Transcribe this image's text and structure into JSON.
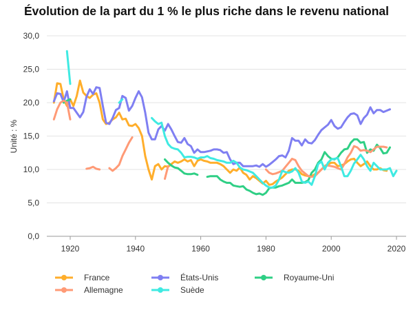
{
  "chart_data": {
    "type": "line",
    "title": "Évolution de la part du 1 % le plus riche dans le revenu national",
    "xlabel": "",
    "ylabel": "Unité : %",
    "xlim": [
      1913,
      2023
    ],
    "ylim": [
      0,
      30
    ],
    "x_ticks": [
      1920,
      1940,
      1960,
      1980,
      2000,
      2020
    ],
    "y_ticks": [
      "0,0",
      "5,0",
      "10,0",
      "15,0",
      "20,0",
      "25,0",
      "30,0"
    ],
    "grid": true,
    "legend_position": "bottom",
    "series": [
      {
        "name": "France",
        "color": "#FFAE2B",
        "start": 1915,
        "values": [
          20.0,
          22.9,
          22.8,
          20.5,
          19.5,
          20.5,
          19.5,
          21.0,
          23.3,
          21.5,
          21.0,
          20.7,
          21.2,
          21.4,
          20.0,
          17.5,
          16.8,
          17.0,
          17.5,
          17.8,
          18.5,
          17.5,
          17.6,
          16.6,
          16.5,
          16.8,
          16.2,
          15.0,
          12.0,
          10.0,
          8.5,
          10.5,
          10.8,
          10.0,
          10.5,
          10.4,
          10.8,
          11.2,
          11.0,
          11.2,
          11.5,
          11.2,
          11.4,
          10.5,
          11.3,
          11.5,
          11.3,
          11.2,
          11.0,
          11.0,
          11.0,
          10.8,
          10.5,
          10.0,
          9.5,
          10.0,
          9.8,
          10.3,
          9.5,
          9.2,
          8.5,
          9.0,
          8.7,
          8.3,
          7.9,
          8.3,
          7.7,
          7.8,
          8.2,
          8.5,
          8.8,
          9.3,
          9.8,
          10.0,
          10.0,
          9.8,
          9.3,
          9.1,
          9.0,
          9.0,
          9.3,
          9.5,
          10.0,
          10.5,
          10.8,
          11.0,
          11.0,
          10.5,
          10.6,
          10.8,
          11.2,
          11.5,
          11.6,
          11.0,
          10.5,
          10.8,
          11.2,
          10.5,
          10.0,
          10.0,
          10.2,
          9.9,
          9.8
        ]
      },
      {
        "name": "États-Unis",
        "color": "#7F7FF2",
        "start": 1915,
        "values": [
          20.2,
          21.4,
          21.3,
          20.1,
          21.7,
          19.2,
          19.2,
          18.5,
          17.8,
          18.6,
          20.9,
          22.0,
          21.3,
          22.3,
          22.2,
          19.5,
          17.0,
          16.8,
          17.7,
          18.9,
          19.2,
          21.0,
          20.7,
          18.8,
          19.5,
          20.7,
          21.7,
          20.8,
          18.5,
          15.5,
          14.5,
          14.5,
          16.0,
          16.5,
          15.8,
          16.8,
          16.0,
          15.0,
          14.1,
          14.0,
          14.7,
          13.8,
          13.5,
          12.5,
          13.0,
          12.6,
          12.6,
          12.7,
          12.8,
          13.0,
          13.0,
          12.9,
          12.5,
          12.6,
          11.5,
          10.8,
          11.0,
          11.0,
          10.5,
          10.5,
          10.5,
          10.5,
          10.6,
          10.4,
          10.8,
          10.4,
          10.7,
          11.1,
          11.5,
          12.0,
          12.1,
          11.8,
          12.8,
          14.7,
          14.3,
          14.3,
          13.6,
          14.5,
          14.0,
          13.9,
          14.4,
          15.2,
          15.9,
          16.3,
          16.7,
          17.4,
          16.5,
          16.1,
          16.3,
          17.1,
          17.8,
          18.3,
          18.4,
          18.1,
          16.8,
          17.7,
          18.2,
          19.3,
          18.4,
          18.9,
          18.9,
          18.6,
          18.8,
          19.0
        ]
      },
      {
        "name": "Royaume-Uni",
        "color": "#2FCF85",
        "start": 1918,
        "values": [
          20.0,
          20.3,
          20.5,
          null,
          null,
          null,
          null,
          null,
          null,
          null,
          null,
          null,
          null,
          null,
          null,
          null,
          null,
          null,
          null,
          null,
          null,
          null,
          null,
          null,
          null,
          null,
          null,
          null,
          null,
          null,
          null,
          11.5,
          11.0,
          10.6,
          10.3,
          10.2,
          9.8,
          9.4,
          9.3,
          9.3,
          9.4,
          9.2,
          null,
          null,
          8.9,
          9.0,
          9.0,
          9.0,
          8.5,
          8.2,
          8.0,
          8.0,
          7.6,
          7.5,
          7.4,
          7.5,
          7.0,
          6.8,
          6.5,
          6.3,
          6.4,
          6.2,
          6.5,
          7.2,
          7.3,
          7.3,
          7.5,
          7.6,
          7.8,
          8.0,
          8.5,
          8.0,
          8.0,
          8.0,
          8.1,
          8.4,
          9.5,
          10.0,
          11.0,
          11.5,
          12.6,
          12.0,
          11.6,
          11.5,
          11.8,
          12.5,
          13.0,
          13.1,
          14.0,
          14.5,
          14.5,
          14.0,
          14.1,
          12.5,
          13.0,
          12.8,
          13.7,
          13.2,
          12.4,
          12.5,
          13.3
        ]
      },
      {
        "name": "Allemagne",
        "color": "#FF9A76",
        "start": 1915,
        "values": [
          17.5,
          19.0,
          20.0,
          20.3,
          20.0,
          17.5,
          null,
          null,
          null,
          null,
          10.1,
          10.2,
          10.4,
          10.1,
          10.0,
          null,
          null,
          10.2,
          9.8,
          10.2,
          10.7,
          12.0,
          13.0,
          14.0,
          14.8,
          null,
          null,
          null,
          null,
          null,
          null,
          null,
          null,
          null,
          8.6,
          10.5,
          null,
          null,
          null,
          null,
          null,
          null,
          null,
          null,
          null,
          null,
          null,
          null,
          null,
          null,
          null,
          null,
          null,
          null,
          null,
          null,
          null,
          null,
          null,
          null,
          null,
          null,
          null,
          null,
          null,
          10.0,
          9.5,
          9.3,
          9.4,
          9.6,
          9.8,
          10.4,
          11.0,
          11.6,
          11.4,
          10.5,
          9.8,
          9.4,
          9.0,
          8.9,
          9.0,
          9.5,
          10.0,
          10.5,
          10.6,
          10.5,
          10.4,
          10.2,
          10.0,
          10.8,
          11.8,
          12.5,
          13.5,
          13.3,
          12.8,
          12.9,
          12.8,
          12.6,
          13.0,
          13.4,
          13.4,
          13.4,
          13.3
        ]
      },
      {
        "name": "Suède",
        "color": "#3FEAE2",
        "start": 1919,
        "values": [
          27.7,
          22.8,
          null,
          null,
          null,
          null,
          null,
          null,
          null,
          null,
          null,
          null,
          null,
          null,
          null,
          null,
          20.0,
          20.5,
          null,
          null,
          null,
          null,
          null,
          null,
          null,
          null,
          17.7,
          17.2,
          16.8,
          17.0,
          15.0,
          13.8,
          13.3,
          13.1,
          13.0,
          12.5,
          11.8,
          11.9,
          11.9,
          11.8,
          11.6,
          11.8,
          11.8,
          12.0,
          11.7,
          11.6,
          11.4,
          11.3,
          11.2,
          11.0,
          11.0,
          11.3,
          11.0,
          10.3,
          10.0,
          9.9,
          9.7,
          9.5,
          9.0,
          8.5,
          8.0,
          7.6,
          7.3,
          7.3,
          7.6,
          8.5,
          9.8,
          9.6,
          9.5,
          9.7,
          10.2,
          9.5,
          8.2,
          8.0,
          8.2,
          7.7,
          9.0,
          10.8,
          11.2,
          10.0,
          11.0,
          11.5,
          11.6,
          11.7,
          10.5,
          9.0,
          9.0,
          9.8,
          10.9,
          11.5,
          12.2,
          11.5,
          10.5,
          9.8,
          11.0,
          10.5,
          10.0,
          10.0,
          10.0,
          10.2,
          9.0,
          9.8
        ]
      }
    ]
  }
}
